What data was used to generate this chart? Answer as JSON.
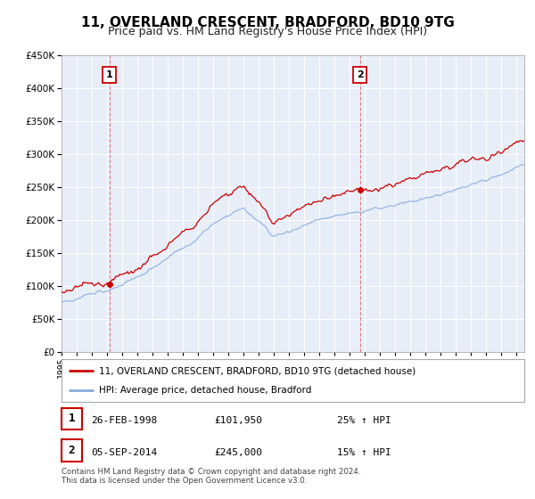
{
  "title": "11, OVERLAND CRESCENT, BRADFORD, BD10 9TG",
  "subtitle": "Price paid vs. HM Land Registry's House Price Index (HPI)",
  "ylim": [
    0,
    450000
  ],
  "xlim_start": 1995.0,
  "xlim_end": 2025.5,
  "sale1": {
    "date": 1998.15,
    "price": 101950,
    "label": "1",
    "date_str": "26-FEB-1998",
    "price_str": "£101,950",
    "hpi_str": "25% ↑ HPI"
  },
  "sale2": {
    "date": 2014.67,
    "price": 245000,
    "label": "2",
    "date_str": "05-SEP-2014",
    "price_str": "£245,000",
    "hpi_str": "15% ↑ HPI"
  },
  "legend_line1": "11, OVERLAND CRESCENT, BRADFORD, BD10 9TG (detached house)",
  "legend_line2": "HPI: Average price, detached house, Bradford",
  "footer": "Contains HM Land Registry data © Crown copyright and database right 2024.\nThis data is licensed under the Open Government Licence v3.0.",
  "line_color_red": "#cc0000",
  "line_color_blue": "#88aadd",
  "bg_chart": "#e8eef8",
  "background_color": "#ffffff",
  "grid_color": "#ffffff",
  "title_fontsize": 11,
  "subtitle_fontsize": 9,
  "tick_fontsize": 7.5
}
